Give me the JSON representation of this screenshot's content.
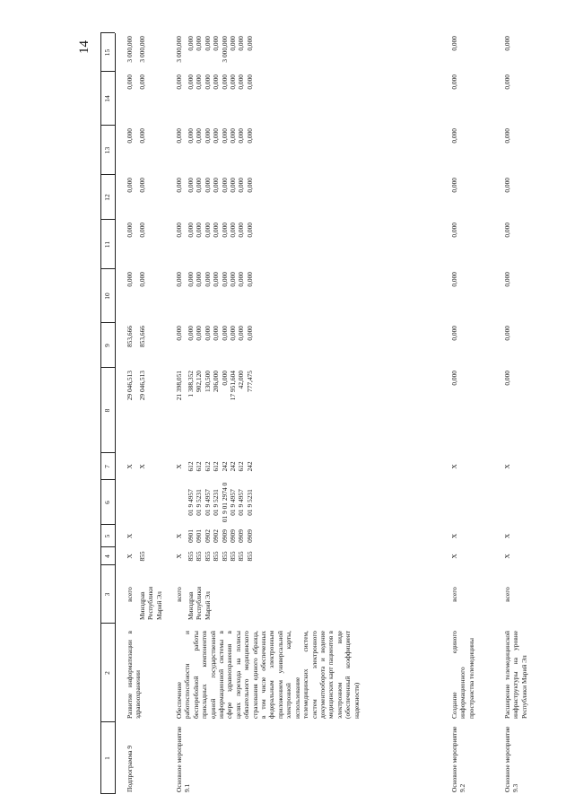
{
  "page_number": "14",
  "table": {
    "header": [
      "1",
      "2",
      "3",
      "4",
      "5",
      "6",
      "7",
      "8",
      "9",
      "10",
      "11",
      "12",
      "13",
      "14",
      "15"
    ],
    "rows": [
      {
        "c1": "Подпрограмма 9",
        "c2": "Развитие информатизации в здравоохранении",
        "lines": [
          [
            "всего",
            "X",
            "X",
            null,
            "X",
            "29 046,513",
            "853,666",
            "0,000",
            "0,000",
            "0,000",
            "0,000",
            "0,000",
            "3 000,000"
          ],
          [
            "Минздрав Республики Марий Эл",
            "855",
            null,
            null,
            "X",
            "29 046,513",
            "853,666",
            "0,000",
            "0,000",
            "0,000",
            "0,000",
            "0,000",
            "3 000,000"
          ]
        ]
      },
      {
        "c1": "Основное мероприятие 9.1",
        "c2": "Обеспечение работоспособности и бесперебойной работы прикладных компонентов единой государственной информационной системы в сфере здравоохранения в целях перехода на полисы обязательного медицинского страхования единого образца, в том числе обеспеченных федеральным электронным приложением универсальной электронной карты, использование телемедицинских систем, систем электронного документооборота и ведение медицинских карт пациентов в электронном виде (обеспеченный коэффициент надежности)",
        "lines": [
          [
            "всего",
            "X",
            "X",
            null,
            "X",
            "21 398,051",
            "0,000",
            "0,000",
            "0,000",
            "0,000",
            "0,000",
            "0,000",
            "3 000,000"
          ],
          [
            "Минздрав Республики Марий Эл",
            "855",
            "0901",
            "01 9 4957",
            "612",
            "1 388,352",
            "0,000",
            "0,000",
            "0,000",
            "0,000",
            "0,000",
            "0,000",
            "0,000"
          ],
          [
            null,
            "855",
            "0901",
            "01 9 5231",
            "612",
            "902,120",
            "0,000",
            "0,000",
            "0,000",
            "0,000",
            "0,000",
            "0,000",
            "0,000"
          ],
          [
            null,
            "855",
            "0902",
            "01 9 4957",
            "612",
            "130,500",
            "0,000",
            "0,000",
            "0,000",
            "0,000",
            "0,000",
            "0,000",
            "0,000"
          ],
          [
            null,
            "855",
            "0902",
            "01 9 5231",
            "612",
            "206,000",
            "0,000",
            "0,000",
            "0,000",
            "0,000",
            "0,000",
            "0,000",
            "0,000"
          ],
          [
            null,
            "855",
            "0909",
            "01 9 01 2974 0",
            "242",
            "0,000",
            "0,000",
            "0,000",
            "0,000",
            "0,000",
            "0,000",
            "0,000",
            "3 000,000"
          ],
          [
            null,
            "855",
            "0909",
            "01 9 4957",
            "242",
            "17 951,604",
            "0,000",
            "0,000",
            "0,000",
            "0,000",
            "0,000",
            "0,000",
            "0,000"
          ],
          [
            null,
            "855",
            "0909",
            "01 9 4957",
            "612",
            "42,000",
            "0,000",
            "0,000",
            "0,000",
            "0,000",
            "0,000",
            "0,000",
            "0,000"
          ],
          [
            null,
            "855",
            "0909",
            "01 9 5231",
            "242",
            "777,475",
            "0,000",
            "0,000",
            "0,000",
            "0,000",
            "0,000",
            "0,000",
            "0,000"
          ]
        ]
      },
      {
        "c1": "Основное мероприятие 9.2",
        "c2": "Создание единого информационного пространства телемедицины",
        "lines": [
          [
            "всего",
            "X",
            "X",
            null,
            "X",
            "0,000",
            "0,000",
            "0,000",
            "0,000",
            "0,000",
            "0,000",
            "0,000",
            "0,000"
          ]
        ]
      },
      {
        "c1": "Основное мероприятие 9.3",
        "c2": "Расширение телемедицинской инфраструктуры на уровне Республики Марий Эл",
        "lines": [
          [
            "всего",
            "X",
            "X",
            null,
            "X",
            "0,000",
            "0,000",
            "0,000",
            "0,000",
            "0,000",
            "0,000",
            "0,000",
            "0,000"
          ]
        ]
      }
    ]
  }
}
